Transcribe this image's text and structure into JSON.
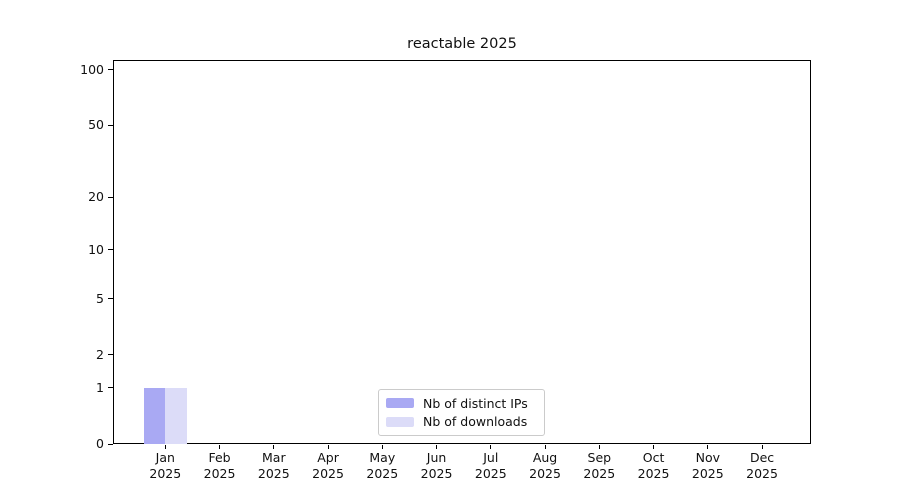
{
  "chart_data": {
    "type": "bar",
    "title": "reactable 2025",
    "x_year": "2025",
    "categories": [
      "Jan",
      "Feb",
      "Mar",
      "Apr",
      "May",
      "Jun",
      "Jul",
      "Aug",
      "Sep",
      "Oct",
      "Nov",
      "Dec"
    ],
    "series": [
      {
        "name": "Nb of distinct IPs",
        "color": "#a9a9f3",
        "values": [
          1,
          0,
          0,
          0,
          0,
          0,
          0,
          0,
          0,
          0,
          0,
          0
        ]
      },
      {
        "name": "Nb of downloads",
        "color": "#dcdcf8",
        "values": [
          1,
          0,
          0,
          0,
          0,
          0,
          0,
          0,
          0,
          0,
          0,
          0
        ]
      }
    ],
    "y_axis": {
      "scale": "log1p",
      "major_ticks": [
        0,
        1,
        2,
        5,
        10,
        20,
        50,
        100
      ],
      "minor_gridlines": [
        3,
        4,
        6,
        7,
        8,
        9,
        30,
        40,
        60,
        70,
        80,
        90
      ],
      "lim": [
        0,
        100
      ]
    },
    "grid": "horizontal",
    "legend_position": "bottom-center",
    "colors": {
      "axis": "#000000",
      "grid_major": "#c6c6c6",
      "grid_minor": "#e9e9e9",
      "legend_border": "#cbcbcb"
    }
  }
}
